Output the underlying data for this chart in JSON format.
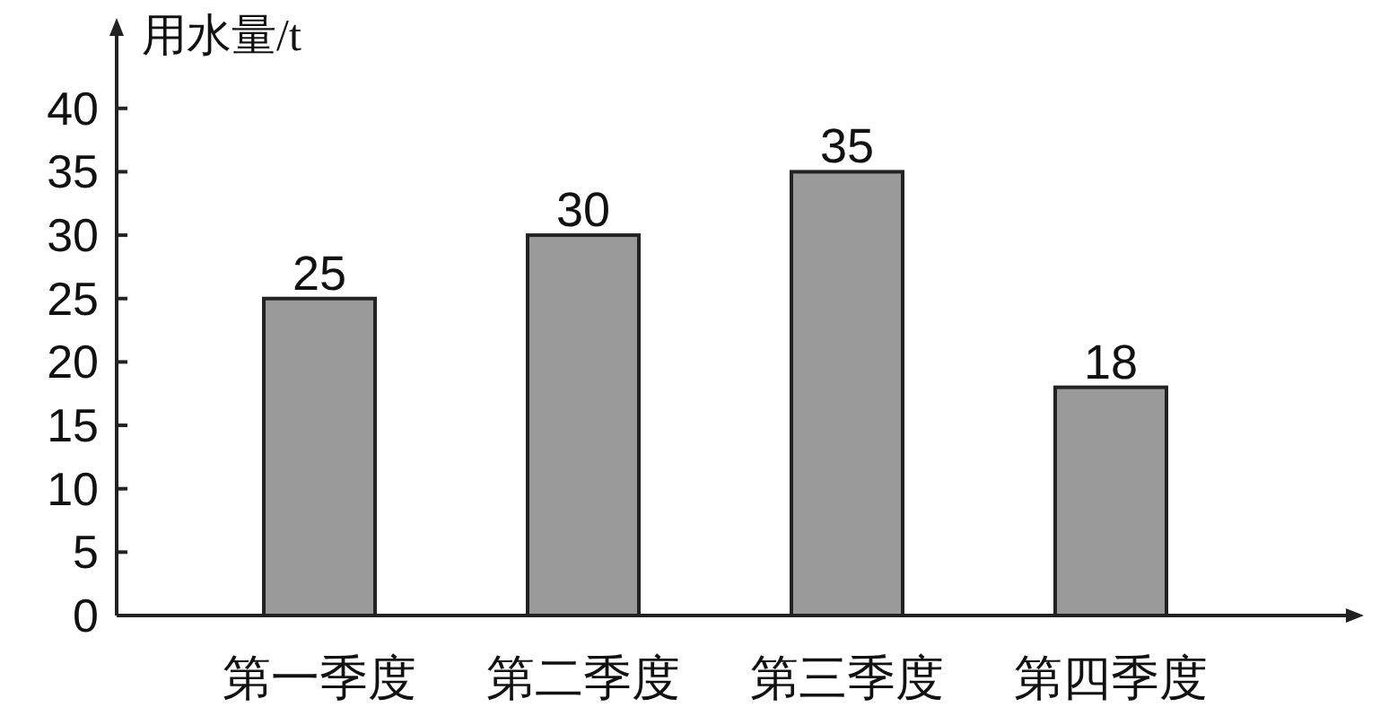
{
  "chart_data": {
    "type": "bar",
    "ylabel": "用水量/t",
    "categories": [
      "第一季度",
      "第二季度",
      "第三季度",
      "第四季度"
    ],
    "values": [
      25,
      30,
      35,
      18
    ],
    "color": "#9a9a9a",
    "ylim": [
      0,
      46
    ],
    "yticks": [
      0,
      5,
      10,
      15,
      20,
      25,
      30,
      35,
      40
    ],
    "data_labels": true
  }
}
